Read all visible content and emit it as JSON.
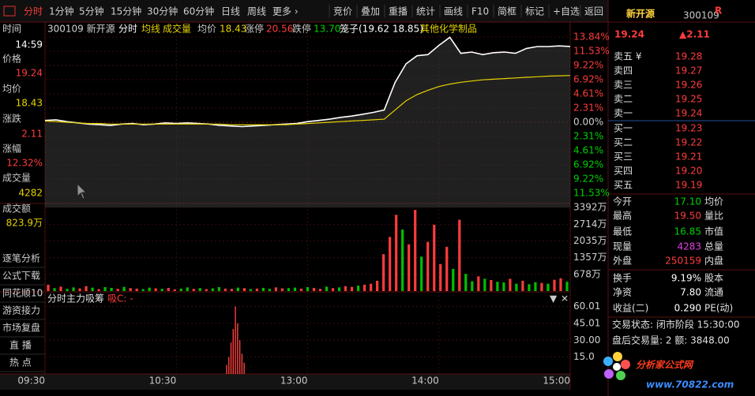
{
  "toolbar": {
    "periods": [
      "分时",
      "1分钟",
      "5分钟",
      "15分钟",
      "30分钟",
      "60分钟",
      "日线",
      "周线",
      "更多 ›"
    ],
    "tools": [
      "竞价",
      "叠加",
      "重播",
      "统计",
      "画线",
      "F10",
      "简框",
      "标记",
      "+自选",
      "返回"
    ]
  },
  "info_bar": {
    "label": "时间",
    "stock": "300109 新开源",
    "items": [
      "分时",
      "均线",
      "成交量",
      "均价",
      "18.43",
      "涨停",
      "20.56",
      "跌停",
      "13.70",
      "笼子(19.62 18.85)",
      "其他化学制品"
    ]
  },
  "cursor_panel": {
    "time": "14:59",
    "rows": [
      [
        "价格",
        "19.24"
      ],
      [
        "均价",
        "18.43"
      ],
      [
        "涨跌",
        "2.11"
      ],
      [
        "涨幅",
        "12.32%"
      ],
      [
        "成交量",
        "4282"
      ],
      [
        "成交额",
        "823.9万"
      ]
    ]
  },
  "side_buttons": [
    "逐笔分析",
    "公式下载",
    "同花顺10",
    "游资接力",
    "市场复盘",
    "直 播",
    "热 点"
  ],
  "quote": {
    "name": "新开源",
    "code": "300109",
    "badge": "R",
    "price": "19.24",
    "change": "▲2.11"
  },
  "order_book": {
    "asks": [
      [
        "卖五 ¥",
        "19.28"
      ],
      [
        "卖四",
        "19.27"
      ],
      [
        "卖三",
        "19.26"
      ],
      [
        "卖二",
        "19.25"
      ],
      [
        "卖一",
        "19.24"
      ]
    ],
    "bids": [
      [
        "买一",
        "19.23"
      ],
      [
        "买二",
        "19.22"
      ],
      [
        "买三",
        "19.21"
      ],
      [
        "买四",
        "19.20"
      ],
      [
        "买五",
        "19.19"
      ]
    ]
  },
  "stats": [
    [
      "今开",
      "17.10",
      "均价"
    ],
    [
      "最高",
      "19.50",
      "量比"
    ],
    [
      "最低",
      "16.85",
      "市值"
    ],
    [
      "现量",
      "4283",
      "总量"
    ],
    [
      "外盘",
      "250159",
      "内盘"
    ],
    [
      "换手",
      "9.19%",
      "股本"
    ],
    [
      "净资",
      "7.80",
      "流通"
    ],
    [
      "收益(二)",
      "0.290",
      "PE(动)"
    ]
  ],
  "status": [
    "交易状态: 闭市阶段 15:30:00",
    "盘后交易量: 2  额: 3848.00"
  ],
  "watermark": {
    "name": "分析家公式网",
    "url": "www.70822.com"
  },
  "chart_data": [
    {
      "type": "line",
      "x": [
        0,
        5,
        10,
        15,
        20,
        25,
        30,
        35,
        40,
        45,
        50,
        55,
        60,
        65,
        70,
        75,
        80,
        85,
        90,
        95,
        100,
        105,
        110,
        115,
        120,
        125,
        130,
        135,
        140,
        145,
        150,
        155,
        160,
        165,
        170,
        175,
        180,
        185,
        190,
        195,
        200,
        205,
        210,
        215,
        220,
        225,
        230,
        235,
        240
      ],
      "series": [
        {
          "color": "#ffffff",
          "values": [
            0.3,
            0.4,
            0.1,
            -0.1,
            -0.3,
            -0.4,
            -0.5,
            -0.3,
            -0.2,
            -0.4,
            -0.3,
            -0.1,
            -0.2,
            -0.1,
            -0.2,
            -0.3,
            -0.5,
            -0.6,
            -0.7,
            -0.6,
            -0.5,
            -0.4,
            -0.3,
            -0.2,
            0.1,
            0.3,
            0.5,
            0.8,
            1.0,
            1.3,
            1.6,
            2.0,
            6.5,
            9.5,
            10.8,
            11.0,
            12.5,
            13.8,
            11.2,
            11.4,
            11.0,
            11.3,
            11.4,
            11.2,
            12.0,
            12.3,
            12.3,
            12.4,
            12.32
          ]
        },
        {
          "color": "#e6d200",
          "values": [
            0.2,
            0.1,
            0,
            -0.1,
            -0.2,
            -0.2,
            -0.3,
            -0.3,
            -0.3,
            -0.3,
            -0.3,
            -0.3,
            -0.3,
            -0.3,
            -0.3,
            -0.3,
            -0.3,
            -0.4,
            -0.4,
            -0.4,
            -0.4,
            -0.4,
            -0.4,
            -0.3,
            -0.2,
            -0.1,
            0,
            0.1,
            0.2,
            0.3,
            0.4,
            0.5,
            2.0,
            3.5,
            4.5,
            5.2,
            5.8,
            6.2,
            6.5,
            6.7,
            6.9,
            7.0,
            7.1,
            7.2,
            7.3,
            7.4,
            7.5,
            7.55,
            7.6
          ]
        }
      ],
      "xlim": [
        0,
        240
      ],
      "xticks": [
        {
          "value": 0,
          "label": "09:30"
        },
        {
          "value": 60,
          "label": "10:30"
        },
        {
          "value": 120,
          "label": "13:00"
        },
        {
          "value": 180,
          "label": "14:00"
        },
        {
          "value": 240,
          "label": "15:00"
        }
      ],
      "ylim": [
        -13.84,
        13.84
      ],
      "yticks": [
        {
          "value": 13.84,
          "label": "13.84%"
        },
        {
          "value": 11.53,
          "label": "11.53%"
        },
        {
          "value": 9.22,
          "label": "9.22%"
        },
        {
          "value": 6.92,
          "label": "6.92%"
        },
        {
          "value": 4.61,
          "label": "4.61%"
        },
        {
          "value": 2.31,
          "label": "2.31%"
        },
        {
          "value": 0,
          "label": "0.00%"
        },
        {
          "value": -2.31,
          "label": "2.31%"
        },
        {
          "value": -4.61,
          "label": "4.61%"
        },
        {
          "value": -6.92,
          "label": "6.92%"
        },
        {
          "value": -9.22,
          "label": "9.22%"
        },
        {
          "value": -11.53,
          "label": "11.53%"
        }
      ],
      "grid": true
    },
    {
      "type": "bar",
      "values": [
        260,
        120,
        180,
        90,
        150,
        110,
        200,
        140,
        80,
        160,
        130,
        90,
        170,
        120,
        100,
        80,
        140,
        110,
        90,
        130,
        70,
        100,
        150,
        90,
        120,
        80,
        110,
        160,
        100,
        90,
        140,
        120,
        80,
        100,
        130,
        90,
        150,
        110,
        120,
        140,
        100,
        160,
        130,
        90,
        180,
        120,
        150,
        200,
        170,
        220,
        260,
        300,
        420,
        1500,
        2200,
        3100,
        2500,
        1900,
        3300,
        1400,
        2000,
        2700,
        1100,
        1800,
        900,
        2900,
        700,
        400,
        600,
        500,
        450,
        380,
        350,
        500,
        300,
        420,
        280,
        360,
        330,
        300,
        460,
        520,
        380
      ],
      "up": [
        true,
        false,
        true,
        false,
        false,
        true,
        true,
        false,
        true,
        false,
        false,
        true,
        false,
        true,
        true,
        false,
        false,
        true,
        false,
        true,
        true,
        false,
        false,
        true,
        false,
        true,
        false,
        false,
        true,
        true,
        false,
        true,
        false,
        true,
        false,
        false,
        true,
        true,
        false,
        false,
        true,
        false,
        true,
        true,
        false,
        true,
        false,
        true,
        true,
        false,
        true,
        true,
        true,
        true,
        true,
        true,
        false,
        true,
        true,
        false,
        true,
        true,
        true,
        true,
        false,
        true,
        false,
        false,
        true,
        false,
        true,
        false,
        false,
        true,
        false,
        true,
        false,
        false,
        true,
        false,
        true,
        true,
        false
      ],
      "colors": {
        "up": "#ff3c3c",
        "down": "#00c000"
      },
      "ylim": [
        0,
        3560
      ],
      "yticks": [
        {
          "value": 3392,
          "label": "3392万"
        },
        {
          "value": 2714,
          "label": "2714万"
        },
        {
          "value": 2035,
          "label": "2035万"
        },
        {
          "value": 1357,
          "label": "1357万"
        },
        {
          "value": 678,
          "label": "678万"
        }
      ]
    },
    {
      "type": "bar",
      "title": "分时主力吸筹",
      "subtitle": "吸C: -",
      "x": [
        83,
        84,
        85,
        86,
        87,
        88,
        89,
        90,
        91
      ],
      "values": [
        8,
        15,
        28,
        40,
        60,
        45,
        30,
        18,
        10
      ],
      "color": "#ff4040",
      "xlim": [
        0,
        240
      ],
      "ylim": [
        0,
        66
      ],
      "yticks": [
        {
          "value": 60.01,
          "label": "60.01"
        },
        {
          "value": 45.01,
          "label": "45.01"
        },
        {
          "value": 30,
          "label": "30.00"
        },
        {
          "value": 15,
          "label": "15.0"
        }
      ]
    }
  ]
}
